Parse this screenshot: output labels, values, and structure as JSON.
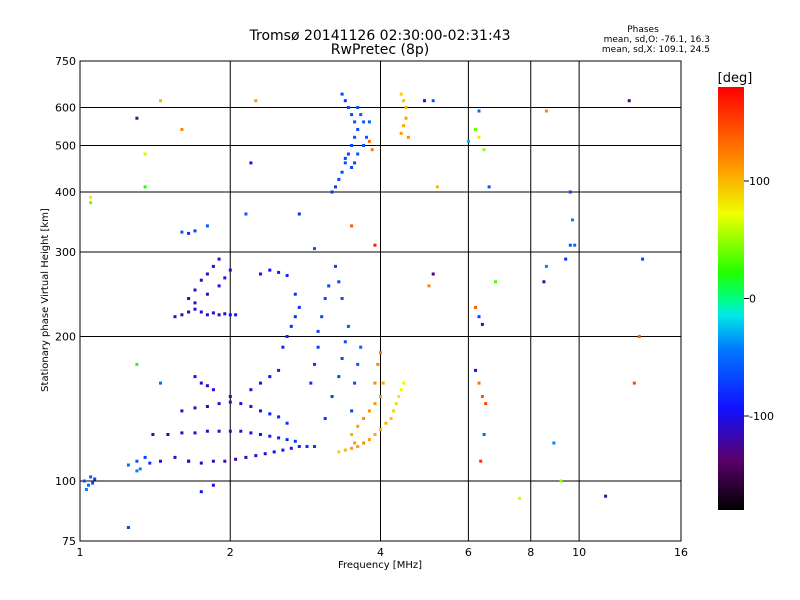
{
  "chart_data": {
    "type": "scatter",
    "title": "Tromsø 20141126 02:30:00-02:31:43",
    "subtitle": "RwPretec (8p)",
    "xlabel": "Frequency [MHz]",
    "ylabel": "Stationary phase Virtual Height [km]",
    "xscale": "log",
    "yscale": "log",
    "xlim": [
      1,
      16
    ],
    "ylim": [
      75,
      750
    ],
    "grid": true,
    "x_ticks": [
      1,
      2,
      4,
      6,
      8,
      10,
      16
    ],
    "x_tick_labels": [
      "1",
      "2",
      "4",
      "6",
      "8",
      "10",
      "16"
    ],
    "y_ticks": [
      75,
      100,
      200,
      300,
      400,
      500,
      600,
      750
    ],
    "y_tick_labels": [
      "75",
      "100",
      "200",
      "300",
      "400",
      "500",
      "600",
      "750"
    ],
    "phases_box": {
      "title": "Phases",
      "line1": "mean, sd,O: -76.1, 16.3",
      "line2": "mean, sd,X: 109.1, 24.5"
    },
    "colorbar": {
      "label": "[deg]",
      "min": -180,
      "max": 180,
      "ticks": [
        100,
        0,
        -100
      ],
      "tick_labels": [
        "100",
        "0",
        "-100"
      ]
    },
    "color_scale": "rainbow: black (-180) → purple → blue (-100) → cyan → green (0) → yellow (100) → red (180)",
    "series": [
      {
        "trace": "O-mode F-layer echo traces",
        "points": [
          [
            1.02,
            100,
            -60
          ],
          [
            1.04,
            98,
            -50
          ],
          [
            1.05,
            102,
            -55
          ],
          [
            1.07,
            101,
            -70
          ],
          [
            1.03,
            96,
            -40
          ],
          [
            1.06,
            99,
            -65
          ],
          [
            1.25,
            108,
            -50
          ],
          [
            1.3,
            110,
            -60
          ],
          [
            1.35,
            112,
            -70
          ],
          [
            1.32,
            106,
            -40
          ],
          [
            1.38,
            109,
            -80
          ],
          [
            1.45,
            110,
            -100
          ],
          [
            1.55,
            112,
            -110
          ],
          [
            1.65,
            110,
            -105
          ],
          [
            1.75,
            109,
            -110
          ],
          [
            1.85,
            110,
            -115
          ],
          [
            1.95,
            110,
            -120
          ],
          [
            2.05,
            111,
            -118
          ],
          [
            2.15,
            112,
            -115
          ],
          [
            2.25,
            113,
            -110
          ],
          [
            2.35,
            114,
            -105
          ],
          [
            2.45,
            115,
            -100
          ],
          [
            2.55,
            116,
            -95
          ],
          [
            2.65,
            117,
            -90
          ],
          [
            2.75,
            118,
            -85
          ],
          [
            2.85,
            118,
            -80
          ],
          [
            2.95,
            118,
            -75
          ],
          [
            1.4,
            125,
            -120
          ],
          [
            1.5,
            125,
            -115
          ],
          [
            1.6,
            126,
            -118
          ],
          [
            1.7,
            126,
            -110
          ],
          [
            1.8,
            127,
            -115
          ],
          [
            1.9,
            127,
            -112
          ],
          [
            2.0,
            127,
            -110
          ],
          [
            2.1,
            127,
            -105
          ],
          [
            2.2,
            126,
            -100
          ],
          [
            2.3,
            125,
            -95
          ],
          [
            2.4,
            124,
            -90
          ],
          [
            2.5,
            123,
            -85
          ],
          [
            2.6,
            122,
            -80
          ],
          [
            2.7,
            121,
            -75
          ],
          [
            1.6,
            140,
            -110
          ],
          [
            1.7,
            142,
            -115
          ],
          [
            1.8,
            143,
            -112
          ],
          [
            1.9,
            145,
            -110
          ],
          [
            2.0,
            146,
            -108
          ],
          [
            2.1,
            145,
            -105
          ],
          [
            2.2,
            143,
            -100
          ],
          [
            2.3,
            140,
            -95
          ],
          [
            2.4,
            138,
            -90
          ],
          [
            2.5,
            136,
            -85
          ],
          [
            2.6,
            132,
            -80
          ],
          [
            1.7,
            165,
            -100
          ],
          [
            1.75,
            160,
            -105
          ],
          [
            1.8,
            158,
            -110
          ],
          [
            1.85,
            155,
            -100
          ],
          [
            2.0,
            150,
            -105
          ],
          [
            2.2,
            155,
            -100
          ],
          [
            2.3,
            160,
            -95
          ],
          [
            2.4,
            165,
            -90
          ],
          [
            2.5,
            170,
            -88
          ],
          [
            2.55,
            190,
            -85
          ],
          [
            2.6,
            200,
            -85
          ],
          [
            2.65,
            210,
            -80
          ],
          [
            2.7,
            220,
            -80
          ],
          [
            2.75,
            230,
            -78
          ],
          [
            2.7,
            245,
            -80
          ],
          [
            2.9,
            160,
            -80
          ],
          [
            2.95,
            175,
            -75
          ],
          [
            3.0,
            190,
            -75
          ],
          [
            3.0,
            205,
            -70
          ],
          [
            3.05,
            220,
            -70
          ],
          [
            3.1,
            240,
            -65
          ],
          [
            3.15,
            255,
            -70
          ],
          [
            3.25,
            280,
            -70
          ],
          [
            3.3,
            260,
            -70
          ],
          [
            3.35,
            240,
            -65
          ],
          [
            3.1,
            135,
            -75
          ],
          [
            3.2,
            150,
            -70
          ],
          [
            3.3,
            165,
            -68
          ],
          [
            3.35,
            180,
            -65
          ],
          [
            3.4,
            195,
            -65
          ],
          [
            3.45,
            210,
            -60
          ],
          [
            3.5,
            140,
            -70
          ],
          [
            3.55,
            160,
            -65
          ],
          [
            3.6,
            175,
            -60
          ],
          [
            3.65,
            190,
            -55
          ],
          [
            1.55,
            220,
            -110
          ],
          [
            1.6,
            222,
            -112
          ],
          [
            1.65,
            225,
            -115
          ],
          [
            1.7,
            228,
            -110
          ],
          [
            1.75,
            225,
            -112
          ],
          [
            1.8,
            222,
            -110
          ],
          [
            1.85,
            224,
            -105
          ],
          [
            1.9,
            222,
            -100
          ],
          [
            1.95,
            223,
            -105
          ],
          [
            2.0,
            222,
            -95
          ],
          [
            2.05,
            222,
            -90
          ],
          [
            1.65,
            240,
            -110
          ],
          [
            1.7,
            250,
            -112
          ],
          [
            1.75,
            262,
            -115
          ],
          [
            1.8,
            270,
            -110
          ],
          [
            1.85,
            280,
            -105
          ],
          [
            1.9,
            290,
            -110
          ],
          [
            1.7,
            235,
            -108
          ],
          [
            1.8,
            245,
            -106
          ],
          [
            1.9,
            255,
            -104
          ],
          [
            1.95,
            265,
            -100
          ],
          [
            2.0,
            275,
            -100
          ],
          [
            1.6,
            330,
            -60
          ],
          [
            1.65,
            328,
            -80
          ],
          [
            1.7,
            332,
            -70
          ],
          [
            1.8,
            340,
            -60
          ],
          [
            2.3,
            270,
            -90
          ],
          [
            2.4,
            275,
            -95
          ],
          [
            2.5,
            272,
            -88
          ],
          [
            2.6,
            268,
            -85
          ],
          [
            3.2,
            400,
            -80
          ],
          [
            3.25,
            410,
            -75
          ],
          [
            3.3,
            425,
            -70
          ],
          [
            3.35,
            440,
            -70
          ],
          [
            3.4,
            460,
            -65
          ],
          [
            3.45,
            480,
            -70
          ],
          [
            3.5,
            500,
            -65
          ],
          [
            3.55,
            520,
            -60
          ],
          [
            3.6,
            540,
            -65
          ],
          [
            3.55,
            560,
            -60
          ],
          [
            3.5,
            580,
            -70
          ],
          [
            3.45,
            600,
            -65
          ],
          [
            3.4,
            620,
            -75
          ],
          [
            3.35,
            640,
            -70
          ],
          [
            3.6,
            600,
            -62
          ],
          [
            3.65,
            580,
            -60
          ],
          [
            3.7,
            560,
            -58
          ],
          [
            3.6,
            480,
            -62
          ],
          [
            3.55,
            460,
            -68
          ],
          [
            3.7,
            500,
            -60
          ],
          [
            3.75,
            520,
            -55
          ],
          [
            3.8,
            560,
            -55
          ],
          [
            3.5,
            450,
            -70
          ],
          [
            3.4,
            470,
            -72
          ]
        ]
      },
      {
        "trace": "X-mode echo traces",
        "points": [
          [
            3.3,
            115,
            90
          ],
          [
            3.4,
            116,
            100
          ],
          [
            3.5,
            117,
            110
          ],
          [
            3.6,
            118,
            110
          ],
          [
            3.7,
            120,
            115
          ],
          [
            3.8,
            122,
            110
          ],
          [
            3.9,
            125,
            105
          ],
          [
            4.0,
            128,
            100
          ],
          [
            4.1,
            132,
            100
          ],
          [
            4.2,
            135,
            95
          ],
          [
            4.25,
            140,
            90
          ],
          [
            4.3,
            145,
            85
          ],
          [
            4.35,
            150,
            80
          ],
          [
            4.4,
            155,
            75
          ],
          [
            4.45,
            160,
            70
          ],
          [
            3.6,
            130,
            110
          ],
          [
            3.7,
            135,
            115
          ],
          [
            3.8,
            140,
            115
          ],
          [
            3.9,
            145,
            112
          ],
          [
            4.0,
            150,
            110
          ],
          [
            4.05,
            160,
            105
          ],
          [
            3.5,
            125,
            105
          ],
          [
            3.55,
            120,
            110
          ],
          [
            3.95,
            175,
            120
          ],
          [
            4.0,
            185,
            125
          ],
          [
            3.9,
            160,
            118
          ],
          [
            4.4,
            530,
            110
          ],
          [
            4.45,
            550,
            105
          ],
          [
            4.5,
            570,
            110
          ],
          [
            4.5,
            600,
            100
          ],
          [
            4.45,
            620,
            95
          ],
          [
            4.4,
            640,
            90
          ],
          [
            4.55,
            520,
            115
          ],
          [
            3.8,
            510,
            130
          ],
          [
            3.85,
            490,
            125
          ]
        ]
      },
      {
        "trace": "scattered noise points",
        "points": [
          [
            1.3,
            570,
            -120
          ],
          [
            1.45,
            620,
            100
          ],
          [
            1.6,
            540,
            120
          ],
          [
            1.35,
            480,
            60
          ],
          [
            1.35,
            410,
            20
          ],
          [
            1.05,
            390,
            80
          ],
          [
            1.05,
            380,
            40
          ],
          [
            2.25,
            620,
            110
          ],
          [
            2.2,
            460,
            -100
          ],
          [
            2.15,
            360,
            -60
          ],
          [
            2.75,
            360,
            -80
          ],
          [
            2.95,
            305,
            -60
          ],
          [
            3.5,
            340,
            140
          ],
          [
            3.9,
            310,
            170
          ],
          [
            4.9,
            620,
            -100
          ],
          [
            5.1,
            620,
            -60
          ],
          [
            5.2,
            410,
            100
          ],
          [
            5.1,
            270,
            -130
          ],
          [
            5.0,
            255,
            120
          ],
          [
            6.0,
            510,
            -30
          ],
          [
            6.3,
            590,
            -50
          ],
          [
            6.2,
            540,
            40
          ],
          [
            6.3,
            520,
            80
          ],
          [
            6.45,
            490,
            50
          ],
          [
            6.6,
            410,
            -60
          ],
          [
            6.8,
            260,
            30
          ],
          [
            6.2,
            230,
            140
          ],
          [
            6.3,
            220,
            -70
          ],
          [
            6.4,
            212,
            -110
          ],
          [
            6.2,
            170,
            -100
          ],
          [
            6.3,
            160,
            130
          ],
          [
            6.4,
            150,
            140
          ],
          [
            6.5,
            145,
            150
          ],
          [
            6.45,
            125,
            -50
          ],
          [
            6.35,
            110,
            160
          ],
          [
            8.6,
            590,
            120
          ],
          [
            8.6,
            280,
            -40
          ],
          [
            8.5,
            260,
            -120
          ],
          [
            9.4,
            290,
            -80
          ],
          [
            9.6,
            400,
            -70
          ],
          [
            9.7,
            350,
            -40
          ],
          [
            9.6,
            310,
            -60
          ],
          [
            9.8,
            310,
            -50
          ],
          [
            12.6,
            620,
            -130
          ],
          [
            13.4,
            290,
            -70
          ],
          [
            13.2,
            200,
            140
          ],
          [
            12.9,
            160,
            150
          ],
          [
            11.3,
            93,
            -120
          ],
          [
            9.2,
            100,
            50
          ],
          [
            8.9,
            120,
            -40
          ],
          [
            7.6,
            92,
            80
          ],
          [
            1.65,
            110,
            -110
          ],
          [
            1.75,
            95,
            -90
          ],
          [
            1.85,
            98,
            -100
          ],
          [
            1.3,
            105,
            -40
          ],
          [
            1.25,
            80,
            -70
          ],
          [
            1.45,
            160,
            -50
          ],
          [
            1.3,
            175,
            20
          ]
        ]
      }
    ]
  }
}
